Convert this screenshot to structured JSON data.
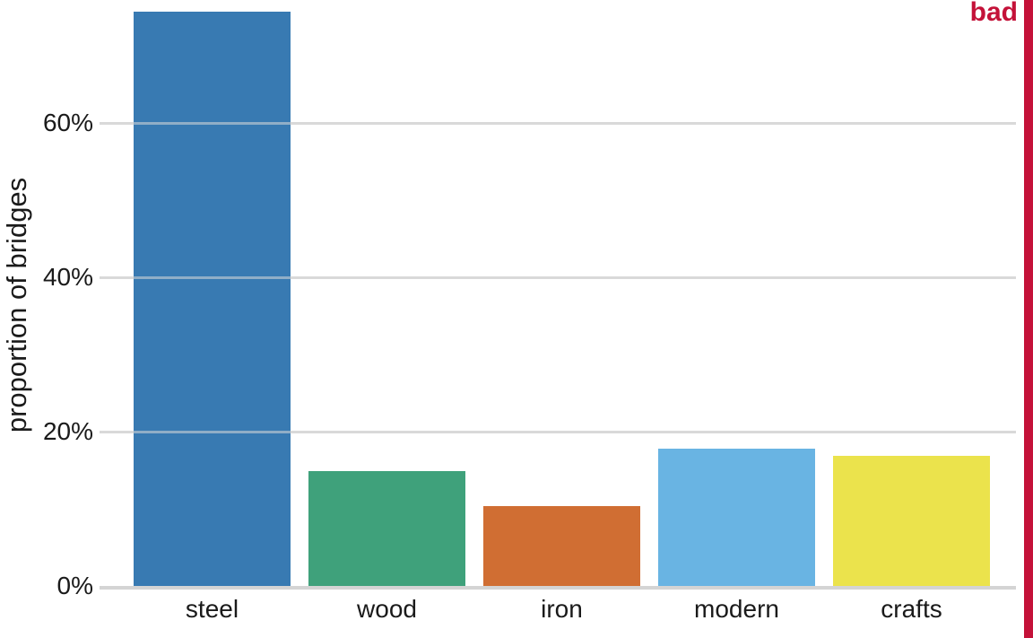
{
  "figure": {
    "background": "#ffffff"
  },
  "annotation": {
    "label": "bad",
    "color": "#C41239",
    "marker_bar_color": "#C41239"
  },
  "chart_data": {
    "type": "bar",
    "title": "",
    "xlabel": "",
    "ylabel": "proportion of bridges",
    "categories": [
      "steel",
      "wood",
      "iron",
      "modern",
      "crafts"
    ],
    "values": [
      74.4,
      14.9,
      10.3,
      17.8,
      16.9
    ],
    "value_unit": "percent",
    "yticks": [
      0,
      20,
      40,
      60
    ],
    "ytick_labels": [
      "0%",
      "20%",
      "40%",
      "60%"
    ],
    "ylim": [
      0,
      76
    ],
    "grid": true,
    "legend": "none",
    "bar_colors": [
      "#387AB2",
      "#3FA17B",
      "#D06E33",
      "#69B4E3",
      "#EBE34C"
    ],
    "gridline_color": "#D9D9D9",
    "axis_line_color": "#D4D4D4",
    "text_color": "#1A1A1A"
  }
}
